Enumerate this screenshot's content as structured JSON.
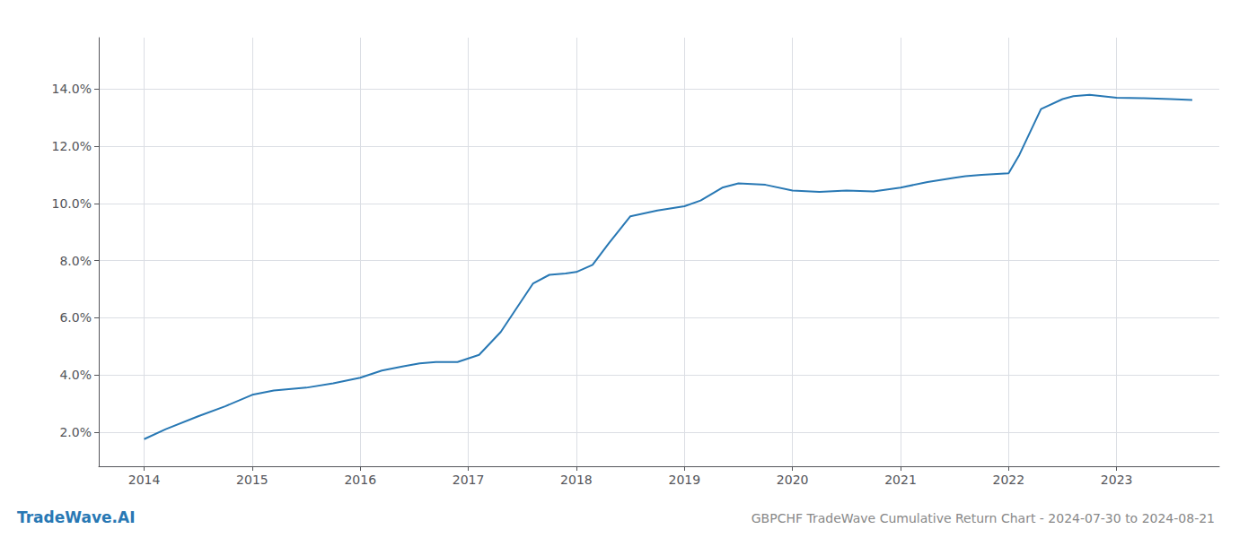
{
  "chart_data": {
    "type": "line",
    "title": "GBPCHF TradeWave Cumulative Return Chart - 2024-07-30 to 2024-08-21",
    "annotations": [
      {
        "text": "TradeWave.AI",
        "color": "#2878b4"
      }
    ],
    "x": [
      2014.0,
      2014.2,
      2014.5,
      2014.75,
      2015.0,
      2015.2,
      2015.5,
      2015.75,
      2016.0,
      2016.2,
      2016.4,
      2016.55,
      2016.7,
      2016.9,
      2017.1,
      2017.3,
      2017.6,
      2017.75,
      2017.9,
      2018.0,
      2018.15,
      2018.3,
      2018.5,
      2018.75,
      2019.0,
      2019.15,
      2019.35,
      2019.5,
      2019.75,
      2020.0,
      2020.25,
      2020.5,
      2020.75,
      2021.0,
      2021.25,
      2021.5,
      2021.6,
      2021.75,
      2022.0,
      2022.1,
      2022.3,
      2022.5,
      2022.6,
      2022.75,
      2023.0,
      2023.25,
      2023.5,
      2023.7
    ],
    "values": [
      1.75,
      2.1,
      2.55,
      2.9,
      3.3,
      3.45,
      3.55,
      3.7,
      3.9,
      4.15,
      4.3,
      4.4,
      4.45,
      4.45,
      4.7,
      5.5,
      7.2,
      7.5,
      7.55,
      7.6,
      7.85,
      8.6,
      9.55,
      9.75,
      9.9,
      10.1,
      10.55,
      10.7,
      10.65,
      10.45,
      10.4,
      10.45,
      10.42,
      10.55,
      10.75,
      10.9,
      10.95,
      11.0,
      11.05,
      11.7,
      13.3,
      13.65,
      13.75,
      13.8,
      13.7,
      13.68,
      13.65,
      13.62
    ],
    "color": "#2878b4",
    "xlim": [
      2013.58,
      2023.95
    ],
    "xticks": [
      2014,
      2015,
      2016,
      2017,
      2018,
      2019,
      2020,
      2021,
      2022,
      2023
    ],
    "ylim": [
      0.8,
      15.8
    ],
    "yticks": [
      {
        "value": 2.0,
        "label": "2.0%"
      },
      {
        "value": 4.0,
        "label": "4.0%"
      },
      {
        "value": 6.0,
        "label": "6.0%"
      },
      {
        "value": 8.0,
        "label": "8.0%"
      },
      {
        "value": 10.0,
        "label": "10.0%"
      },
      {
        "value": 12.0,
        "label": "12.0%"
      },
      {
        "value": 14.0,
        "label": "14.0%"
      }
    ],
    "grid": true
  }
}
